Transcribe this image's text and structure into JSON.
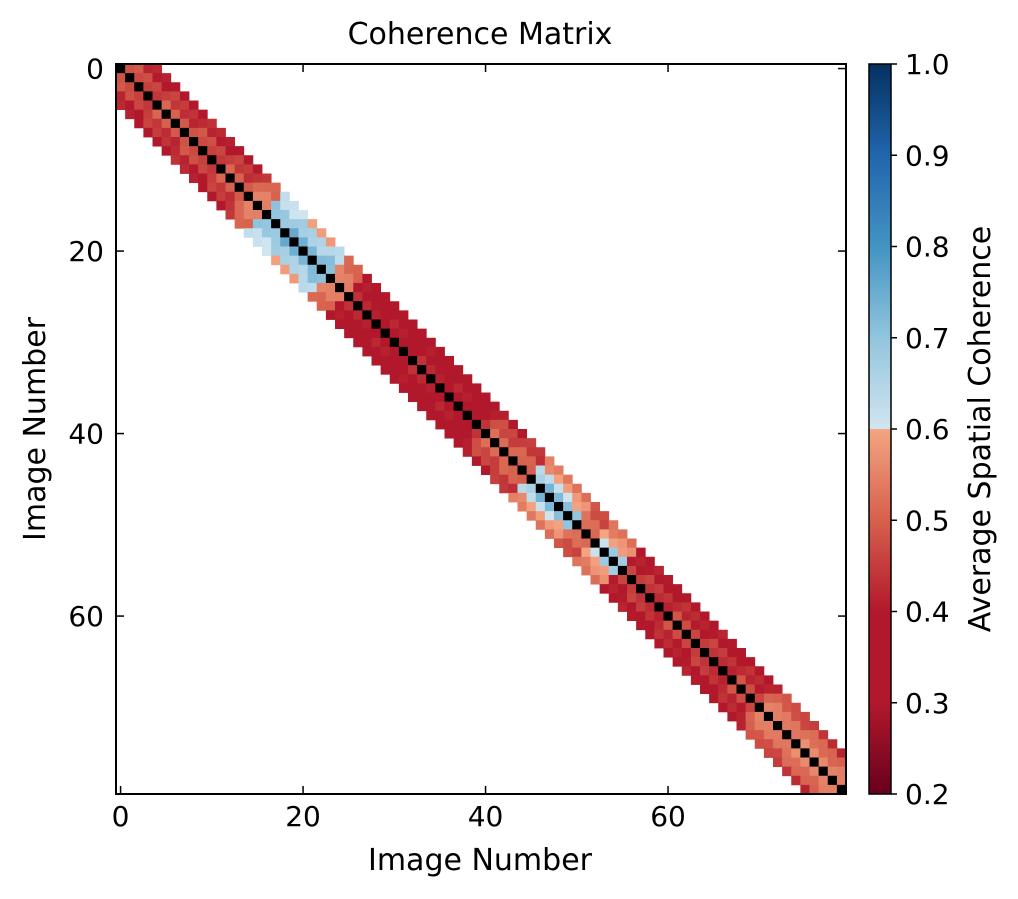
{
  "chart_data": {
    "type": "heatmap",
    "title": "Coherence Matrix",
    "xlabel": "Image Number",
    "ylabel": "Image Number",
    "n_images": 80,
    "x_ticks": [
      0,
      20,
      40,
      60
    ],
    "y_ticks": [
      0,
      20,
      40,
      60
    ],
    "band_halfwidth": 4,
    "diagonal_value": 1.0,
    "colorbar": {
      "label": "Average Spatial Coherence",
      "range": [
        0.2,
        1.0
      ],
      "ticks": [
        "0.2",
        "0.3",
        "0.4",
        "0.5",
        "0.6",
        "0.7",
        "0.8",
        "0.9",
        "1.0"
      ],
      "colormap": "RdBu",
      "colors": {
        "low": "#67001f",
        "red": "#b2182b",
        "mid_red": "#d6604d",
        "salmon": "#f4a582",
        "light_blue": "#d1e5f0",
        "blue": "#92c5de",
        "mid_blue": "#4393c3",
        "dark_blue": "#2166ac",
        "high": "#053061"
      }
    },
    "regions": [
      {
        "start": 0,
        "end": 14,
        "near": 0.48,
        "far": 0.4
      },
      {
        "start": 14,
        "end": 16,
        "near": 0.6,
        "far": 0.48
      },
      {
        "start": 16,
        "end": 23,
        "near": 0.82,
        "far": 0.7
      },
      {
        "start": 23,
        "end": 25,
        "near": 0.62,
        "far": 0.5
      },
      {
        "start": 25,
        "end": 40,
        "near": 0.4,
        "far": 0.36
      },
      {
        "start": 40,
        "end": 45,
        "near": 0.52,
        "far": 0.42
      },
      {
        "start": 45,
        "end": 50,
        "near": 0.8,
        "far": 0.58
      },
      {
        "start": 50,
        "end": 52,
        "near": 0.55,
        "far": 0.45
      },
      {
        "start": 52,
        "end": 55,
        "near": 0.75,
        "far": 0.55
      },
      {
        "start": 55,
        "end": 70,
        "near": 0.45,
        "far": 0.38
      },
      {
        "start": 70,
        "end": 80,
        "near": 0.6,
        "far": 0.45
      }
    ]
  }
}
